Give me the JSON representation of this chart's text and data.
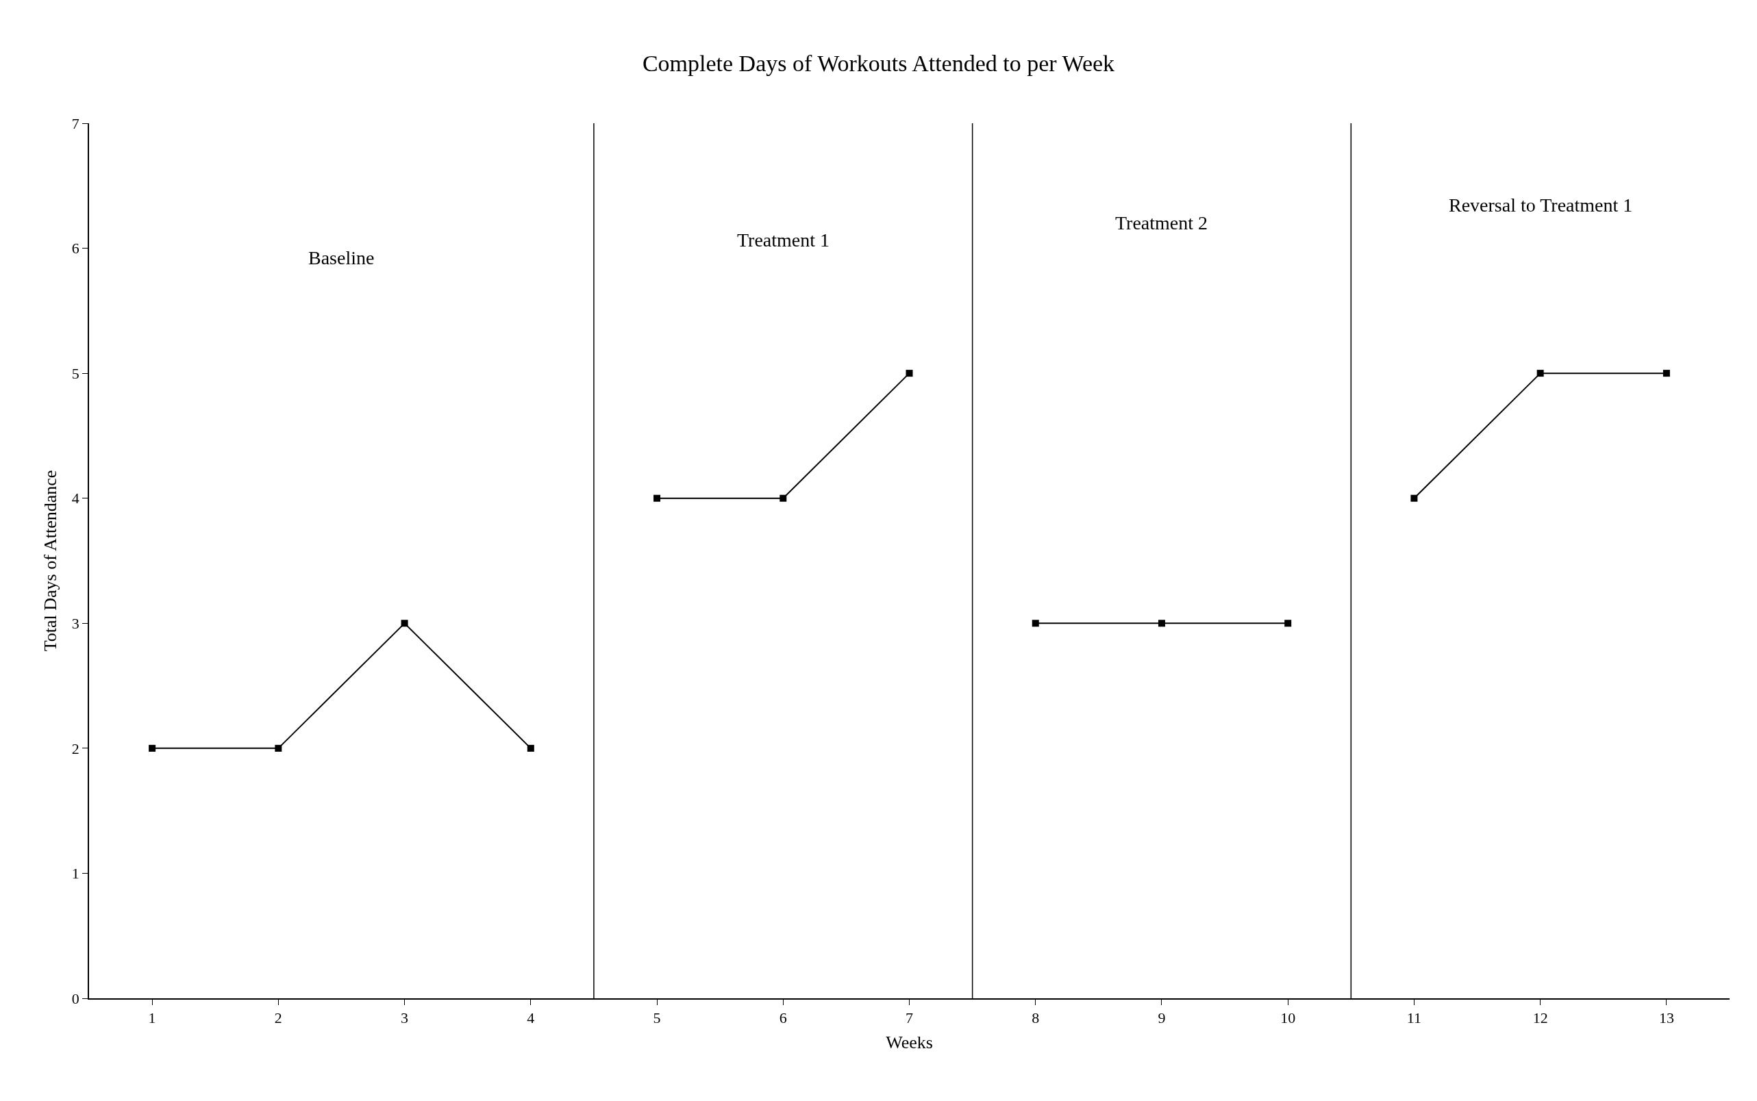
{
  "chart_data": {
    "type": "line",
    "title": "Complete Days of Workouts Attended to per Week",
    "xlabel": "Weeks",
    "ylabel": "Total Days of Attendance",
    "series": [
      {
        "color": "#000000",
        "x": [
          1,
          2,
          3,
          4
        ],
        "values": [
          2,
          2,
          3,
          2
        ]
      },
      {
        "color": "#000000",
        "x": [
          5,
          6,
          7
        ],
        "values": [
          4,
          4,
          5
        ]
      },
      {
        "color": "#000000",
        "x": [
          8,
          9,
          10
        ],
        "values": [
          3,
          3,
          3
        ]
      },
      {
        "color": "#000000",
        "x": [
          11,
          12,
          13
        ],
        "values": [
          4,
          5,
          5
        ]
      }
    ],
    "xlim": [
      0.5,
      13.5
    ],
    "xticks": [
      1,
      2,
      3,
      4,
      5,
      6,
      7,
      8,
      9,
      10,
      11,
      12,
      13
    ],
    "ylim": [
      0,
      7
    ],
    "yticks": [
      0,
      1,
      2,
      3,
      4,
      5,
      6,
      7
    ],
    "ref_lines": [
      {
        "axis": "x",
        "value": 4.5,
        "color": "#000000"
      },
      {
        "axis": "x",
        "value": 7.5,
        "color": "#000000"
      },
      {
        "axis": "x",
        "value": 10.5,
        "color": "#000000"
      }
    ],
    "annotations": [
      "Baseline",
      "Treatment 1",
      "Treatment 2",
      "Reversal to Treatment 1"
    ],
    "marker": "square",
    "line_style": "solid"
  }
}
